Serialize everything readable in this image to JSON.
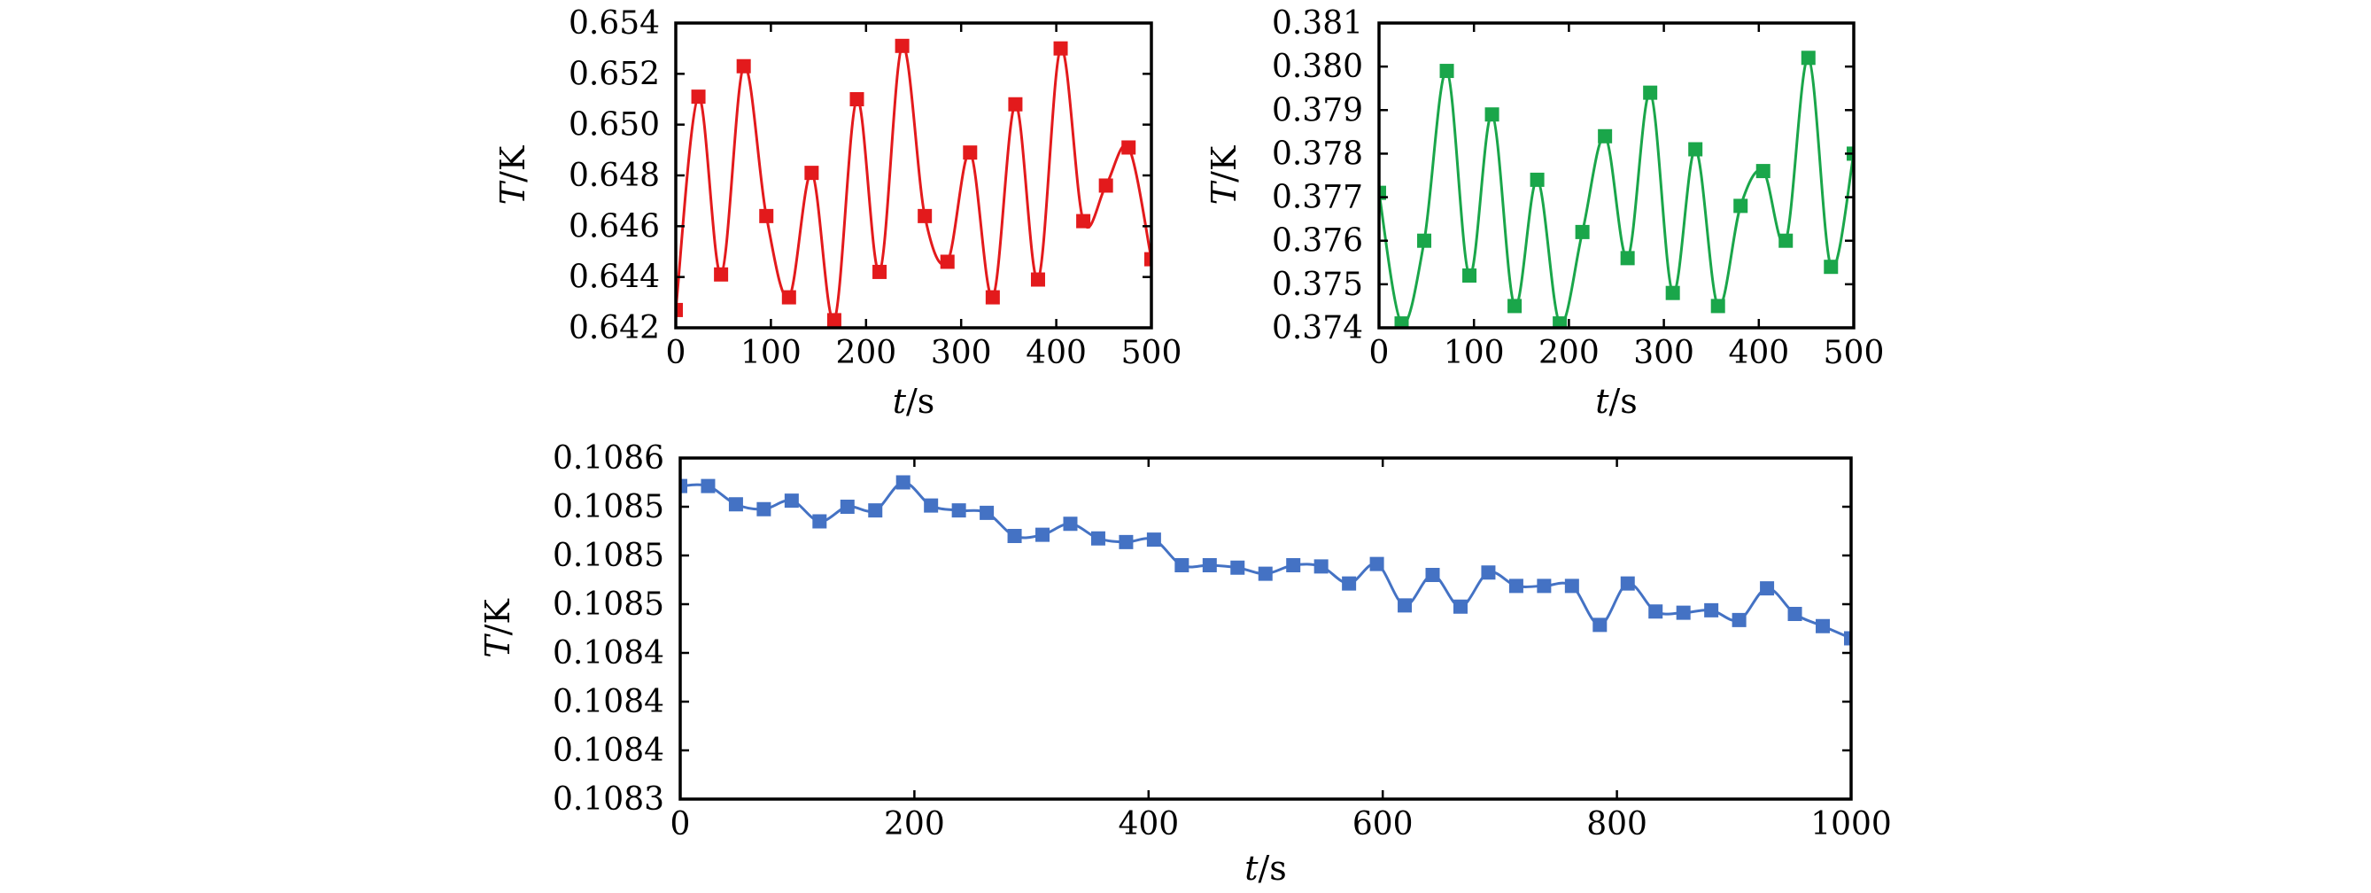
{
  "chart_data": [
    {
      "type": "line",
      "id": "top-left",
      "title": "",
      "xlabel_italic": "t",
      "xlabel_unit": "/s",
      "ylabel_italic": "T",
      "ylabel_unit": "/K",
      "xlim": [
        0,
        500
      ],
      "ylim": [
        0.642,
        0.654
      ],
      "xticks": [
        0,
        100,
        200,
        300,
        400,
        500
      ],
      "xtick_labels": [
        "0",
        "100",
        "200",
        "300",
        "400",
        "500"
      ],
      "yticks": [
        0.642,
        0.644,
        0.646,
        0.648,
        0.65,
        0.652,
        0.654
      ],
      "ytick_labels": [
        "0.642",
        "0.644",
        "0.646",
        "0.648",
        "0.650",
        "0.652",
        "0.654"
      ],
      "marker": "square",
      "color": "#e31a1c",
      "series": [
        {
          "x": [
            0,
            23.8,
            47.6,
            71.4,
            95.2,
            119.0,
            142.8,
            166.6,
            190.4,
            214.2,
            238.0,
            261.8,
            285.6,
            309.4,
            333.2,
            357.0,
            380.8,
            404.6,
            428.4,
            452.2,
            476.0,
            500
          ],
          "y": [
            0.6427,
            0.6511,
            0.6441,
            0.6523,
            0.6464,
            0.6432,
            0.6481,
            0.6423,
            0.651,
            0.6442,
            0.6531,
            0.6464,
            0.6446,
            0.6489,
            0.6432,
            0.6508,
            0.6439,
            0.653,
            0.6462,
            0.6476,
            0.6491,
            0.6447
          ]
        }
      ]
    },
    {
      "type": "line",
      "id": "top-right",
      "title": "",
      "xlabel_italic": "t",
      "xlabel_unit": "/s",
      "ylabel_italic": "T",
      "ylabel_unit": "/K",
      "xlim": [
        0,
        500
      ],
      "ylim": [
        0.374,
        0.381
      ],
      "xticks": [
        0,
        100,
        200,
        300,
        400,
        500
      ],
      "xtick_labels": [
        "0",
        "100",
        "200",
        "300",
        "400",
        "500"
      ],
      "yticks": [
        0.374,
        0.375,
        0.376,
        0.377,
        0.378,
        0.379,
        0.38,
        0.381
      ],
      "ytick_labels": [
        "0.374",
        "0.375",
        "0.376",
        "0.377",
        "0.378",
        "0.379",
        "0.380",
        "0.381"
      ],
      "marker": "square",
      "color": "#1aa64a",
      "series": [
        {
          "x": [
            0,
            23.8,
            47.6,
            71.4,
            95.2,
            119.0,
            142.8,
            166.6,
            190.4,
            214.2,
            238.0,
            261.8,
            285.6,
            309.4,
            333.2,
            357.0,
            380.8,
            404.6,
            428.4,
            452.2,
            476.0,
            500
          ],
          "y": [
            0.3771,
            0.3741,
            0.376,
            0.3799,
            0.3752,
            0.3789,
            0.3745,
            0.3774,
            0.3741,
            0.3762,
            0.3784,
            0.3756,
            0.3794,
            0.3748,
            0.3781,
            0.3745,
            0.3768,
            0.3776,
            0.376,
            0.3802,
            0.3754,
            0.378
          ]
        }
      ]
    },
    {
      "type": "line",
      "id": "bottom",
      "title": "",
      "xlabel_italic": "t",
      "xlabel_unit": "/s",
      "ylabel_italic": "T",
      "ylabel_unit": "/K",
      "xlim": [
        0,
        1000
      ],
      "ylim": [
        0.10832,
        0.1086
      ],
      "xticks": [
        0,
        200,
        400,
        600,
        800,
        1000
      ],
      "xtick_labels": [
        "0",
        "200",
        "400",
        "600",
        "800",
        "1000"
      ],
      "yticks": [
        0.10832,
        0.10836,
        0.1084,
        0.10844,
        0.10848,
        0.10852,
        0.10856,
        0.1086
      ],
      "ytick_labels": [
        "0.1083",
        "0.1084",
        "0.1084",
        "0.1084",
        "0.1085",
        "0.1085",
        "0.1085",
        "0.1086"
      ],
      "marker": "square",
      "color": "#4472c4",
      "series": [
        {
          "x": [
            0,
            23.8,
            47.6,
            71.4,
            95.2,
            119.0,
            142.8,
            166.6,
            190.4,
            214.2,
            238.0,
            261.8,
            285.6,
            309.4,
            333.2,
            357.0,
            380.8,
            404.6,
            428.4,
            452.2,
            476.0,
            499.8,
            523.6,
            547.4,
            571.2,
            595.0,
            618.8,
            642.6,
            666.4,
            690.2,
            714.0,
            737.8,
            761.6,
            785.4,
            809.2,
            833.0,
            856.8,
            880.6,
            904.4,
            928.2,
            952.0,
            975.8,
            1000
          ],
          "y": [
            0.108577,
            0.108577,
            0.108562,
            0.108558,
            0.108565,
            0.108548,
            0.10856,
            0.108557,
            0.10858,
            0.108561,
            0.108557,
            0.108555,
            0.108536,
            0.108537,
            0.108546,
            0.108534,
            0.108531,
            0.108533,
            0.108512,
            0.108512,
            0.10851,
            0.108505,
            0.108512,
            0.108511,
            0.108497,
            0.108513,
            0.108479,
            0.108504,
            0.108478,
            0.108506,
            0.108495,
            0.108495,
            0.108495,
            0.108463,
            0.108497,
            0.108474,
            0.108473,
            0.108475,
            0.108467,
            0.108493,
            0.108472,
            0.108462,
            0.108452
          ]
        }
      ]
    }
  ]
}
